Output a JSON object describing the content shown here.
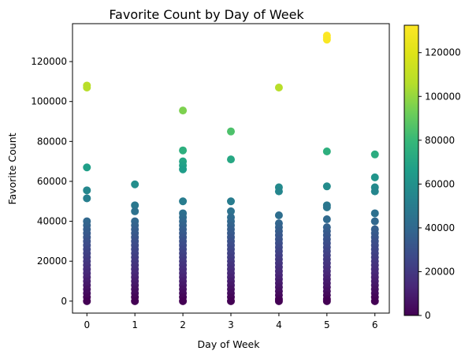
{
  "chart_data": {
    "type": "scatter",
    "title": "Favorite Count by Day of Week",
    "xlabel": "Day of Week",
    "ylabel": "Favorite Count",
    "xlim": [
      -0.3,
      6.3
    ],
    "ylim": [
      -6000,
      139000
    ],
    "x_ticks": [
      0,
      1,
      2,
      3,
      4,
      5,
      6
    ],
    "y_ticks": [
      0,
      20000,
      40000,
      60000,
      80000,
      100000,
      120000
    ],
    "grid": false,
    "colormap": "viridis",
    "colorbar": {
      "range": [
        0,
        132500
      ],
      "ticks": [
        0,
        20000,
        40000,
        60000,
        80000,
        100000,
        120000
      ]
    },
    "points": [
      {
        "x": 0,
        "y": 108000
      },
      {
        "x": 0,
        "y": 107000
      },
      {
        "x": 0,
        "y": 67000
      },
      {
        "x": 0,
        "y": 55500
      },
      {
        "x": 0,
        "y": 51500
      },
      {
        "x": 0,
        "y": 40000
      },
      {
        "x": 0,
        "y": 38000
      },
      {
        "x": 0,
        "y": 36000
      },
      {
        "x": 0,
        "y": 34000
      },
      {
        "x": 0,
        "y": 32000
      },
      {
        "x": 0,
        "y": 30000
      },
      {
        "x": 0,
        "y": 28000
      },
      {
        "x": 0,
        "y": 26000
      },
      {
        "x": 0,
        "y": 24000
      },
      {
        "x": 0,
        "y": 22000
      },
      {
        "x": 0,
        "y": 20000
      },
      {
        "x": 0,
        "y": 18000
      },
      {
        "x": 0,
        "y": 16000
      },
      {
        "x": 0,
        "y": 14000
      },
      {
        "x": 0,
        "y": 12000
      },
      {
        "x": 0,
        "y": 10000
      },
      {
        "x": 0,
        "y": 8000
      },
      {
        "x": 0,
        "y": 6000
      },
      {
        "x": 0,
        "y": 4000
      },
      {
        "x": 0,
        "y": 2000
      },
      {
        "x": 0,
        "y": 0
      },
      {
        "x": 1,
        "y": 58500
      },
      {
        "x": 1,
        "y": 48000
      },
      {
        "x": 1,
        "y": 45000
      },
      {
        "x": 1,
        "y": 40000
      },
      {
        "x": 1,
        "y": 38000
      },
      {
        "x": 1,
        "y": 36000
      },
      {
        "x": 1,
        "y": 34000
      },
      {
        "x": 1,
        "y": 32000
      },
      {
        "x": 1,
        "y": 30000
      },
      {
        "x": 1,
        "y": 28000
      },
      {
        "x": 1,
        "y": 26000
      },
      {
        "x": 1,
        "y": 24000
      },
      {
        "x": 1,
        "y": 22000
      },
      {
        "x": 1,
        "y": 20000
      },
      {
        "x": 1,
        "y": 18000
      },
      {
        "x": 1,
        "y": 16000
      },
      {
        "x": 1,
        "y": 14000
      },
      {
        "x": 1,
        "y": 12000
      },
      {
        "x": 1,
        "y": 10000
      },
      {
        "x": 1,
        "y": 8000
      },
      {
        "x": 1,
        "y": 6000
      },
      {
        "x": 1,
        "y": 4000
      },
      {
        "x": 1,
        "y": 2000
      },
      {
        "x": 1,
        "y": 0
      },
      {
        "x": 2,
        "y": 95500
      },
      {
        "x": 2,
        "y": 75500
      },
      {
        "x": 2,
        "y": 70000
      },
      {
        "x": 2,
        "y": 68000
      },
      {
        "x": 2,
        "y": 66000
      },
      {
        "x": 2,
        "y": 50000
      },
      {
        "x": 2,
        "y": 44000
      },
      {
        "x": 2,
        "y": 42000
      },
      {
        "x": 2,
        "y": 40000
      },
      {
        "x": 2,
        "y": 38000
      },
      {
        "x": 2,
        "y": 36000
      },
      {
        "x": 2,
        "y": 34000
      },
      {
        "x": 2,
        "y": 32000
      },
      {
        "x": 2,
        "y": 30000
      },
      {
        "x": 2,
        "y": 28000
      },
      {
        "x": 2,
        "y": 26000
      },
      {
        "x": 2,
        "y": 24000
      },
      {
        "x": 2,
        "y": 22000
      },
      {
        "x": 2,
        "y": 20000
      },
      {
        "x": 2,
        "y": 18000
      },
      {
        "x": 2,
        "y": 16000
      },
      {
        "x": 2,
        "y": 14000
      },
      {
        "x": 2,
        "y": 12000
      },
      {
        "x": 2,
        "y": 10000
      },
      {
        "x": 2,
        "y": 8000
      },
      {
        "x": 2,
        "y": 6000
      },
      {
        "x": 2,
        "y": 4000
      },
      {
        "x": 2,
        "y": 2000
      },
      {
        "x": 2,
        "y": 0
      },
      {
        "x": 3,
        "y": 85000
      },
      {
        "x": 3,
        "y": 71000
      },
      {
        "x": 3,
        "y": 50000
      },
      {
        "x": 3,
        "y": 45000
      },
      {
        "x": 3,
        "y": 42000
      },
      {
        "x": 3,
        "y": 40000
      },
      {
        "x": 3,
        "y": 38000
      },
      {
        "x": 3,
        "y": 36000
      },
      {
        "x": 3,
        "y": 34000
      },
      {
        "x": 3,
        "y": 32000
      },
      {
        "x": 3,
        "y": 30000
      },
      {
        "x": 3,
        "y": 28000
      },
      {
        "x": 3,
        "y": 26000
      },
      {
        "x": 3,
        "y": 24000
      },
      {
        "x": 3,
        "y": 22000
      },
      {
        "x": 3,
        "y": 20000
      },
      {
        "x": 3,
        "y": 18000
      },
      {
        "x": 3,
        "y": 16000
      },
      {
        "x": 3,
        "y": 14000
      },
      {
        "x": 3,
        "y": 12000
      },
      {
        "x": 3,
        "y": 10000
      },
      {
        "x": 3,
        "y": 8000
      },
      {
        "x": 3,
        "y": 6000
      },
      {
        "x": 3,
        "y": 4000
      },
      {
        "x": 3,
        "y": 2000
      },
      {
        "x": 3,
        "y": 0
      },
      {
        "x": 4,
        "y": 107000
      },
      {
        "x": 4,
        "y": 57000
      },
      {
        "x": 4,
        "y": 55000
      },
      {
        "x": 4,
        "y": 43000
      },
      {
        "x": 4,
        "y": 39000
      },
      {
        "x": 4,
        "y": 37000
      },
      {
        "x": 4,
        "y": 35000
      },
      {
        "x": 4,
        "y": 33000
      },
      {
        "x": 4,
        "y": 31000
      },
      {
        "x": 4,
        "y": 29000
      },
      {
        "x": 4,
        "y": 27000
      },
      {
        "x": 4,
        "y": 25000
      },
      {
        "x": 4,
        "y": 23000
      },
      {
        "x": 4,
        "y": 21000
      },
      {
        "x": 4,
        "y": 19000
      },
      {
        "x": 4,
        "y": 17000
      },
      {
        "x": 4,
        "y": 15000
      },
      {
        "x": 4,
        "y": 13000
      },
      {
        "x": 4,
        "y": 11000
      },
      {
        "x": 4,
        "y": 9000
      },
      {
        "x": 4,
        "y": 7000
      },
      {
        "x": 4,
        "y": 5000
      },
      {
        "x": 4,
        "y": 3000
      },
      {
        "x": 4,
        "y": 1000
      },
      {
        "x": 4,
        "y": 0
      },
      {
        "x": 5,
        "y": 133000
      },
      {
        "x": 5,
        "y": 132000
      },
      {
        "x": 5,
        "y": 131000
      },
      {
        "x": 5,
        "y": 75000
      },
      {
        "x": 5,
        "y": 57500
      },
      {
        "x": 5,
        "y": 48000
      },
      {
        "x": 5,
        "y": 47000
      },
      {
        "x": 5,
        "y": 41000
      },
      {
        "x": 5,
        "y": 37000
      },
      {
        "x": 5,
        "y": 35000
      },
      {
        "x": 5,
        "y": 33000
      },
      {
        "x": 5,
        "y": 31000
      },
      {
        "x": 5,
        "y": 29000
      },
      {
        "x": 5,
        "y": 27000
      },
      {
        "x": 5,
        "y": 25000
      },
      {
        "x": 5,
        "y": 23000
      },
      {
        "x": 5,
        "y": 21000
      },
      {
        "x": 5,
        "y": 19000
      },
      {
        "x": 5,
        "y": 17000
      },
      {
        "x": 5,
        "y": 15000
      },
      {
        "x": 5,
        "y": 13000
      },
      {
        "x": 5,
        "y": 11000
      },
      {
        "x": 5,
        "y": 9000
      },
      {
        "x": 5,
        "y": 7000
      },
      {
        "x": 5,
        "y": 5000
      },
      {
        "x": 5,
        "y": 3000
      },
      {
        "x": 5,
        "y": 1000
      },
      {
        "x": 5,
        "y": 0
      },
      {
        "x": 6,
        "y": 73500
      },
      {
        "x": 6,
        "y": 62000
      },
      {
        "x": 6,
        "y": 57000
      },
      {
        "x": 6,
        "y": 55000
      },
      {
        "x": 6,
        "y": 44000
      },
      {
        "x": 6,
        "y": 40000
      },
      {
        "x": 6,
        "y": 36000
      },
      {
        "x": 6,
        "y": 34000
      },
      {
        "x": 6,
        "y": 32000
      },
      {
        "x": 6,
        "y": 30000
      },
      {
        "x": 6,
        "y": 28000
      },
      {
        "x": 6,
        "y": 26000
      },
      {
        "x": 6,
        "y": 24000
      },
      {
        "x": 6,
        "y": 22000
      },
      {
        "x": 6,
        "y": 20000
      },
      {
        "x": 6,
        "y": 18000
      },
      {
        "x": 6,
        "y": 16000
      },
      {
        "x": 6,
        "y": 14000
      },
      {
        "x": 6,
        "y": 12000
      },
      {
        "x": 6,
        "y": 10000
      },
      {
        "x": 6,
        "y": 8000
      },
      {
        "x": 6,
        "y": 6000
      },
      {
        "x": 6,
        "y": 4000
      },
      {
        "x": 6,
        "y": 2000
      },
      {
        "x": 6,
        "y": 0
      }
    ]
  }
}
